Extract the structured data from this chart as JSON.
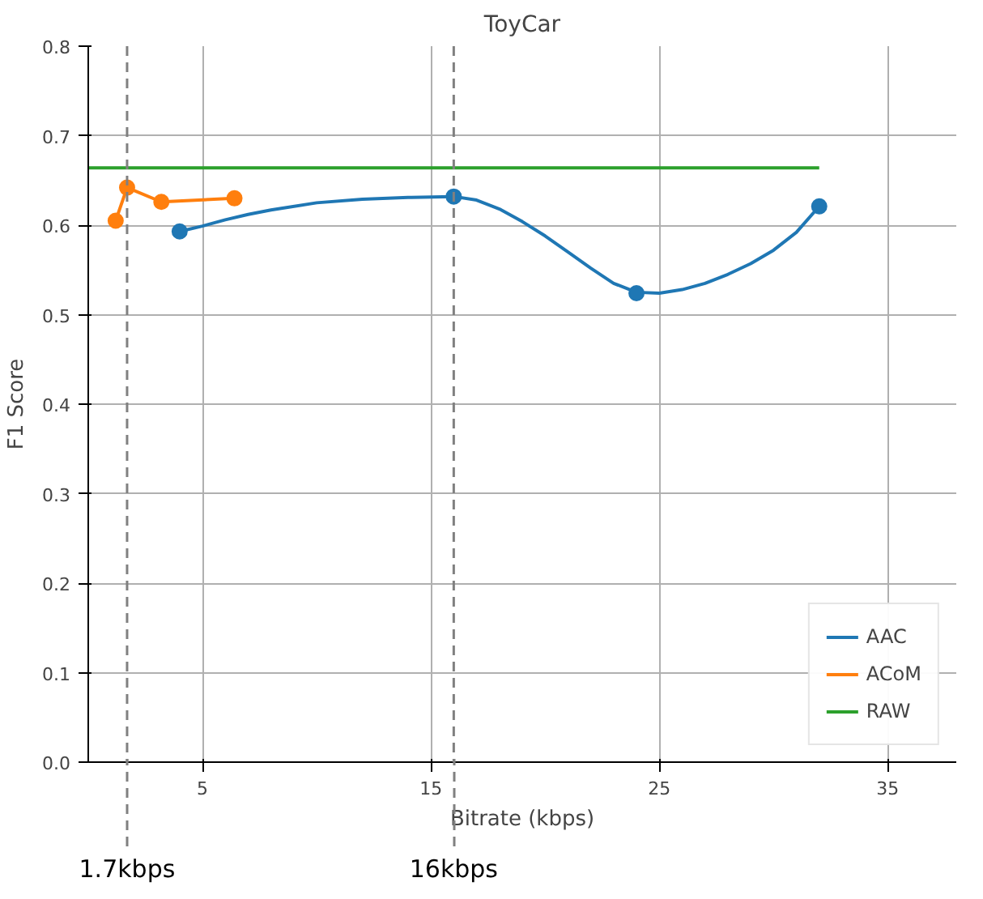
{
  "chart_data": {
    "type": "line",
    "title": "ToyCar",
    "xlabel": "Bitrate (kbps)",
    "ylabel": "F1 Score",
    "xlim": [
      0,
      38
    ],
    "xticks": [
      5,
      15,
      25,
      35
    ],
    "ylim": [
      0,
      0.8
    ],
    "yticks": [
      {
        "value": 0,
        "label": "0.0"
      },
      0.1,
      0.2,
      0.3,
      0.4,
      0.5,
      0.6,
      0.7,
      0.8
    ],
    "grid": true,
    "legend": "bottom right",
    "series": [
      {
        "name": "AAC",
        "color": "#1f77b4",
        "x": [
          4,
          5,
          6,
          7,
          8,
          10,
          12,
          14,
          16,
          17,
          18,
          19,
          20,
          21,
          22,
          23,
          24,
          25,
          26,
          27,
          28,
          29,
          30,
          31,
          32
        ],
        "values": [
          0.593,
          0.599,
          0.606,
          0.612,
          0.617,
          0.625,
          0.629,
          0.631,
          0.632,
          0.628,
          0.618,
          0.604,
          0.588,
          0.57,
          0.552,
          0.535,
          0.525,
          0.524,
          0.528,
          0.535,
          0.545,
          0.557,
          0.572,
          0.592,
          0.621
        ],
        "marker": "none"
      },
      {
        "type": "scatter",
        "color": "#1f77b4",
        "x": [
          4,
          16,
          24,
          32
        ],
        "values": [
          0.593,
          0.632,
          0.524,
          0.621
        ],
        "marker": "circle"
      },
      {
        "name": "ACoM",
        "color": "#ff7f0e",
        "x": [
          1.2,
          1.7,
          3.2,
          6.4
        ],
        "values": [
          0.605,
          0.642,
          0.626,
          0.63
        ],
        "marker": "circle"
      },
      {
        "name": "RAW",
        "color": "#2ca02c",
        "x": [
          0,
          32
        ],
        "values": [
          0.664,
          0.664
        ],
        "marker": "none"
      }
    ],
    "ref_lines": [
      {
        "axis": "x",
        "value": 1.7,
        "label": "1.7kbps",
        "color": "#808080",
        "line_style": "dashed"
      },
      {
        "axis": "x",
        "value": 16,
        "label": "16kbps",
        "color": "#808080",
        "line_style": "dashed"
      }
    ]
  }
}
